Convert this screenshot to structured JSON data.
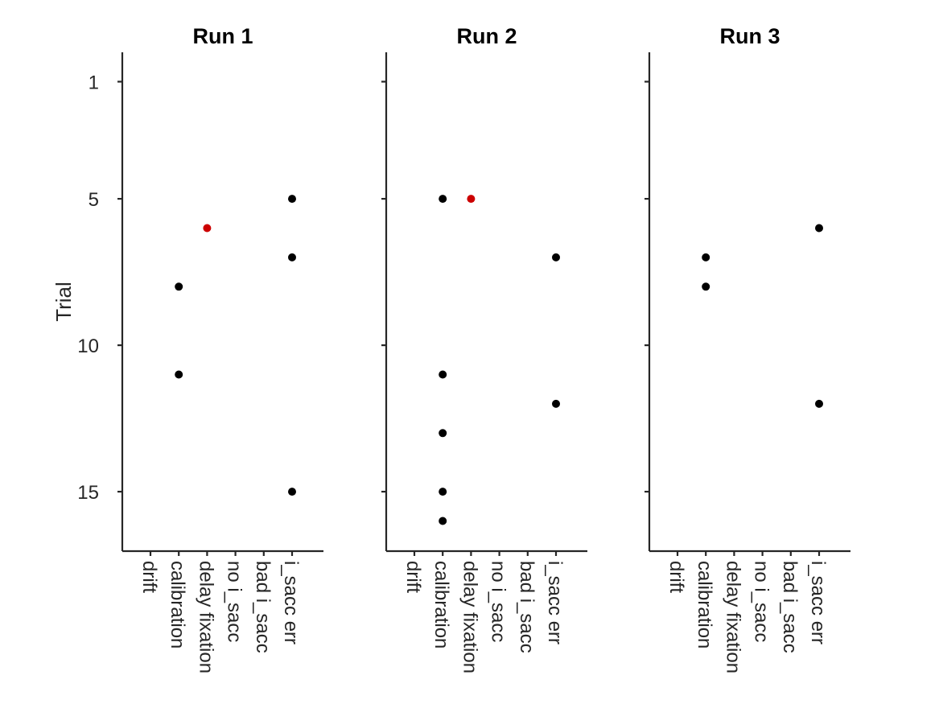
{
  "chart_data": {
    "type": "scatter",
    "ylabel": "Trial",
    "y_inverted": true,
    "ylim": [
      0,
      17
    ],
    "yticks": [
      1,
      5,
      10,
      15
    ],
    "categories": [
      "drift",
      "calibration",
      "delay fixation",
      "no i_sacc",
      "bad i_sacc",
      "i_sacc err"
    ],
    "colors": {
      "default": "#000000",
      "highlight": "#cc0000"
    },
    "panels": [
      {
        "title": "Run 1",
        "points": [
          {
            "category": "calibration",
            "trial": 8,
            "color": "#000000"
          },
          {
            "category": "calibration",
            "trial": 11,
            "color": "#000000"
          },
          {
            "category": "delay fixation",
            "trial": 6,
            "color": "#cc0000"
          },
          {
            "category": "i_sacc err",
            "trial": 5,
            "color": "#000000"
          },
          {
            "category": "i_sacc err",
            "trial": 7,
            "color": "#000000"
          },
          {
            "category": "i_sacc err",
            "trial": 15,
            "color": "#000000"
          }
        ]
      },
      {
        "title": "Run 2",
        "points": [
          {
            "category": "calibration",
            "trial": 5,
            "color": "#000000"
          },
          {
            "category": "calibration",
            "trial": 11,
            "color": "#000000"
          },
          {
            "category": "calibration",
            "trial": 13,
            "color": "#000000"
          },
          {
            "category": "calibration",
            "trial": 15,
            "color": "#000000"
          },
          {
            "category": "calibration",
            "trial": 16,
            "color": "#000000"
          },
          {
            "category": "delay fixation",
            "trial": 5,
            "color": "#cc0000"
          },
          {
            "category": "i_sacc err",
            "trial": 7,
            "color": "#000000"
          },
          {
            "category": "i_sacc err",
            "trial": 12,
            "color": "#000000"
          }
        ]
      },
      {
        "title": "Run 3",
        "points": [
          {
            "category": "calibration",
            "trial": 7,
            "color": "#000000"
          },
          {
            "category": "calibration",
            "trial": 8,
            "color": "#000000"
          },
          {
            "category": "i_sacc err",
            "trial": 6,
            "color": "#000000"
          },
          {
            "category": "i_sacc err",
            "trial": 12,
            "color": "#000000"
          }
        ]
      }
    ]
  }
}
